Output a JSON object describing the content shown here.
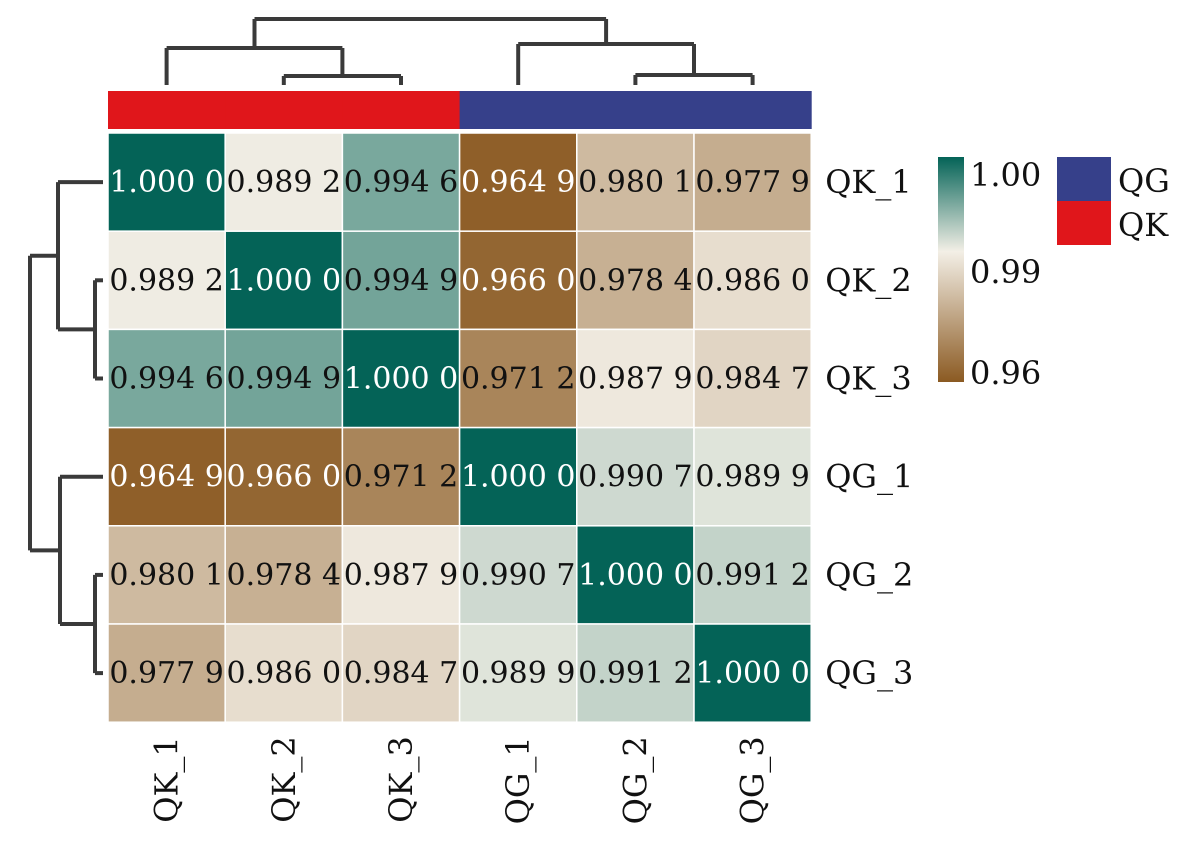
{
  "chart_data": {
    "type": "heatmap",
    "row_labels": [
      "QK_1",
      "QK_2",
      "QK_3",
      "QG_1",
      "QG_2",
      "QG_3"
    ],
    "col_labels": [
      "QK_1",
      "QK_2",
      "QK_3",
      "QG_1",
      "QG_2",
      "QG_3"
    ],
    "cell_labels": [
      [
        "1.000 0",
        "0.989 2",
        "0.994 6",
        "0.964 9",
        "0.980 1",
        "0.977 9"
      ],
      [
        "0.989 2",
        "1.000 0",
        "0.994 9",
        "0.966 0",
        "0.978 4",
        "0.986 0"
      ],
      [
        "0.994 6",
        "0.994 9",
        "1.000 0",
        "0.971 2",
        "0.987 9",
        "0.984 7"
      ],
      [
        "0.964 9",
        "0.966 0",
        "0.971 2",
        "1.000 0",
        "0.990 7",
        "0.989 9"
      ],
      [
        "0.980 1",
        "0.978 4",
        "0.987 9",
        "0.990 7",
        "1.000 0",
        "0.991 2"
      ],
      [
        "0.977 9",
        "0.986 0",
        "0.984 7",
        "0.989 9",
        "0.991 2",
        "1.000 0"
      ]
    ],
    "values": [
      [
        1.0,
        0.9892,
        0.9946,
        0.9649,
        0.9801,
        0.9779
      ],
      [
        0.9892,
        1.0,
        0.9949,
        0.966,
        0.9784,
        0.986
      ],
      [
        0.9946,
        0.9949,
        1.0,
        0.9712,
        0.9879,
        0.9847
      ],
      [
        0.9649,
        0.966,
        0.9712,
        1.0,
        0.9907,
        0.9899
      ],
      [
        0.9801,
        0.9784,
        0.9879,
        0.9907,
        1.0,
        0.9912
      ],
      [
        0.9779,
        0.986,
        0.9847,
        0.9899,
        0.9912,
        1.0
      ]
    ],
    "column_groups": [
      "QK",
      "QK",
      "QK",
      "QG",
      "QG",
      "QG"
    ],
    "group_colors": {
      "QK": "#e0161b",
      "QG": "#36408a"
    },
    "group_legend": [
      "QG",
      "QK"
    ],
    "colorbar": {
      "tick_labels": [
        "1.00",
        "0.99",
        "0.96"
      ],
      "ticks": [
        1.0,
        0.99,
        0.96
      ],
      "range": [
        0.964,
        1.0
      ],
      "colors": {
        "low": "#8b5a22",
        "mid": "#f3efe6",
        "high": "#046357"
      }
    },
    "dendrogram": {
      "description_free": true,
      "merge_order": [
        [
          "QK_2",
          "QK_3"
        ],
        [
          "QK_1",
          "QK_2+QK_3"
        ],
        [
          "QG_2",
          "QG_3"
        ],
        [
          "QG_1",
          "QG_2+QG_3"
        ],
        [
          "QK",
          "QG"
        ]
      ]
    }
  }
}
